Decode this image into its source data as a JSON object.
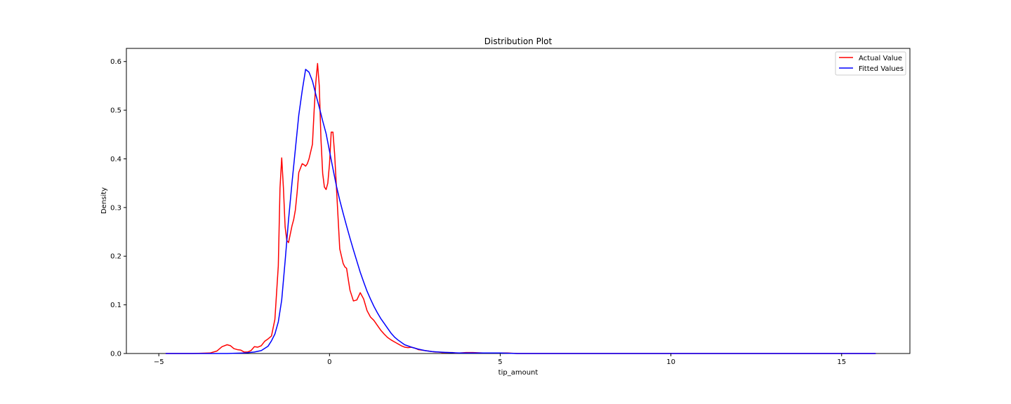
{
  "chart_data": {
    "type": "line",
    "title": "Distribution Plot",
    "xlabel": "tip_amount",
    "ylabel": "Density",
    "xlim": [
      -5.95,
      17.0
    ],
    "ylim": [
      0,
      0.627
    ],
    "x_ticks": [
      -5,
      0,
      5,
      10,
      15
    ],
    "x_tick_labels": [
      "−5",
      "0",
      "5",
      "10",
      "15"
    ],
    "y_ticks": [
      0.0,
      0.1,
      0.2,
      0.3,
      0.4,
      0.5,
      0.6
    ],
    "y_tick_labels": [
      "0.0",
      "0.1",
      "0.2",
      "0.3",
      "0.4",
      "0.5",
      "0.6"
    ],
    "grid": false,
    "legend_position": "top-right",
    "series": [
      {
        "name": "Actual Value",
        "color": "#ff0000",
        "x": [
          -4.8,
          -4.0,
          -3.5,
          -3.3,
          -3.15,
          -3.0,
          -2.9,
          -2.8,
          -2.7,
          -2.6,
          -2.5,
          -2.4,
          -2.3,
          -2.2,
          -2.1,
          -2.0,
          -1.9,
          -1.8,
          -1.7,
          -1.6,
          -1.5,
          -1.45,
          -1.4,
          -1.35,
          -1.3,
          -1.25,
          -1.2,
          -1.15,
          -1.1,
          -1.05,
          -1.0,
          -0.95,
          -0.9,
          -0.8,
          -0.75,
          -0.7,
          -0.65,
          -0.6,
          -0.5,
          -0.45,
          -0.4,
          -0.35,
          -0.3,
          -0.25,
          -0.2,
          -0.15,
          -0.1,
          -0.05,
          0.0,
          0.05,
          0.1,
          0.15,
          0.2,
          0.25,
          0.3,
          0.35,
          0.4,
          0.45,
          0.5,
          0.55,
          0.6,
          0.7,
          0.8,
          0.9,
          1.0,
          1.1,
          1.2,
          1.3,
          1.4,
          1.5,
          1.6,
          1.7,
          1.8,
          1.9,
          2.0,
          2.1,
          2.2,
          2.3,
          2.4,
          2.5,
          2.6,
          2.7,
          2.8,
          2.9,
          3.0,
          3.1,
          3.2,
          3.3,
          3.4,
          3.5,
          3.6,
          3.7,
          3.8,
          4.0,
          4.2,
          4.5,
          5.0,
          5.2,
          5.5,
          6.0,
          8.0,
          10.0,
          12.0,
          14.0,
          16.0
        ],
        "y": [
          0.0,
          0.0,
          0.001,
          0.005,
          0.014,
          0.018,
          0.016,
          0.01,
          0.008,
          0.007,
          0.003,
          0.003,
          0.006,
          0.014,
          0.013,
          0.016,
          0.025,
          0.03,
          0.036,
          0.07,
          0.18,
          0.34,
          0.402,
          0.34,
          0.26,
          0.232,
          0.228,
          0.245,
          0.262,
          0.275,
          0.295,
          0.33,
          0.372,
          0.39,
          0.388,
          0.385,
          0.39,
          0.4,
          0.43,
          0.5,
          0.558,
          0.596,
          0.55,
          0.44,
          0.37,
          0.342,
          0.337,
          0.35,
          0.39,
          0.455,
          0.455,
          0.41,
          0.345,
          0.28,
          0.215,
          0.2,
          0.185,
          0.178,
          0.175,
          0.152,
          0.13,
          0.108,
          0.11,
          0.125,
          0.112,
          0.088,
          0.075,
          0.068,
          0.058,
          0.048,
          0.04,
          0.033,
          0.028,
          0.024,
          0.02,
          0.016,
          0.013,
          0.012,
          0.013,
          0.011,
          0.008,
          0.007,
          0.006,
          0.005,
          0.004,
          0.003,
          0.003,
          0.002,
          0.002,
          0.002,
          0.002,
          0.001,
          0.001,
          0.002,
          0.002,
          0.001,
          0.001,
          0.001,
          0.0,
          0.0,
          0.0,
          0.0,
          0.0,
          0.0,
          0.0
        ]
      },
      {
        "name": "Fitted Values",
        "color": "#0000ff",
        "x": [
          -4.8,
          -3.0,
          -2.5,
          -2.2,
          -2.0,
          -1.8,
          -1.7,
          -1.6,
          -1.5,
          -1.4,
          -1.3,
          -1.2,
          -1.1,
          -1.0,
          -0.9,
          -0.8,
          -0.7,
          -0.6,
          -0.5,
          -0.4,
          -0.3,
          -0.2,
          -0.1,
          0.0,
          0.1,
          0.2,
          0.3,
          0.4,
          0.5,
          0.6,
          0.7,
          0.8,
          0.9,
          1.0,
          1.1,
          1.2,
          1.3,
          1.4,
          1.5,
          1.6,
          1.7,
          1.8,
          1.9,
          2.0,
          2.2,
          2.4,
          2.6,
          2.8,
          3.0,
          3.2,
          3.5,
          3.8,
          4.0,
          4.5,
          5.0,
          5.5,
          6.0,
          8.0,
          10.0,
          12.0,
          14.0,
          16.0
        ],
        "y": [
          0.0,
          0.0,
          0.001,
          0.003,
          0.006,
          0.015,
          0.026,
          0.04,
          0.065,
          0.11,
          0.19,
          0.275,
          0.35,
          0.42,
          0.49,
          0.54,
          0.584,
          0.578,
          0.56,
          0.532,
          0.506,
          0.478,
          0.452,
          0.416,
          0.38,
          0.345,
          0.315,
          0.288,
          0.262,
          0.237,
          0.213,
          0.19,
          0.167,
          0.147,
          0.128,
          0.112,
          0.097,
          0.084,
          0.072,
          0.062,
          0.052,
          0.042,
          0.034,
          0.028,
          0.018,
          0.013,
          0.009,
          0.006,
          0.004,
          0.003,
          0.002,
          0.001,
          0.001,
          0.001,
          0.001,
          0.0,
          0.0,
          0.0,
          0.0,
          0.0,
          0.0,
          0.0
        ]
      }
    ]
  }
}
